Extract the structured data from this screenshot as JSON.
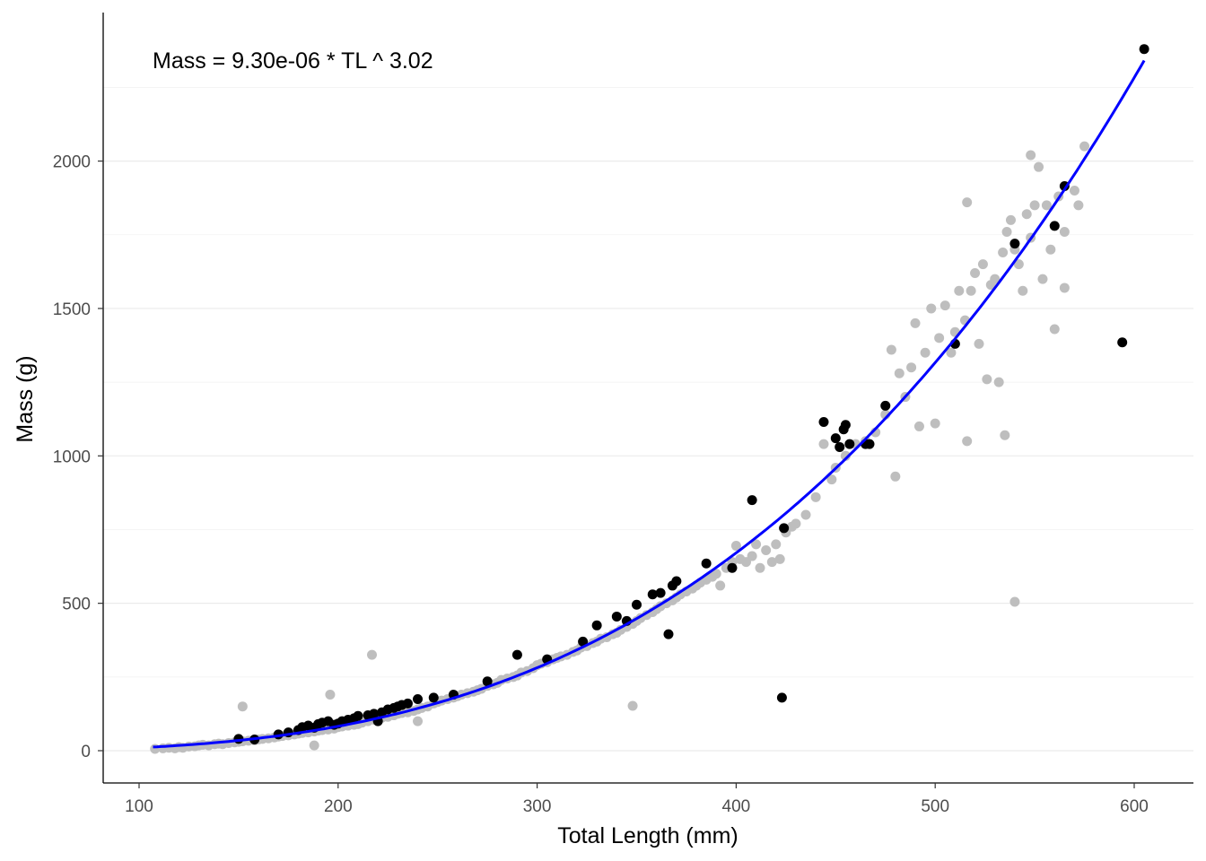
{
  "chart_data": {
    "type": "scatter",
    "title": "",
    "annotation": "Mass = 9.30e-06 * TL ^ 3.02",
    "xlabel": "Total Length (mm)",
    "ylabel": "Mass (g)",
    "xlim": [
      90,
      630
    ],
    "ylim": [
      -110,
      2500
    ],
    "x_ticks": [
      100,
      200,
      300,
      400,
      500,
      600
    ],
    "y_ticks": [
      0,
      500,
      1000,
      1500,
      2000
    ],
    "grid": true,
    "legend": "none",
    "colors": {
      "grey_points": "#bebebe",
      "black_points": "#000000",
      "fit_line": "#0000ff"
    },
    "fit": {
      "a": 9.3e-06,
      "b": 3.02,
      "x_range": [
        107,
        605
      ]
    },
    "series": [
      {
        "color": "#bebebe",
        "points": [
          [
            108,
            6
          ],
          [
            112,
            8
          ],
          [
            115,
            10
          ],
          [
            118,
            8
          ],
          [
            120,
            12
          ],
          [
            122,
            10
          ],
          [
            125,
            14
          ],
          [
            128,
            15
          ],
          [
            130,
            18
          ],
          [
            132,
            20
          ],
          [
            135,
            18
          ],
          [
            138,
            22
          ],
          [
            140,
            24
          ],
          [
            142,
            22
          ],
          [
            145,
            26
          ],
          [
            148,
            28
          ],
          [
            150,
            30
          ],
          [
            152,
            32
          ],
          [
            152,
            150
          ],
          [
            155,
            34
          ],
          [
            158,
            35
          ],
          [
            160,
            38
          ],
          [
            162,
            40
          ],
          [
            165,
            42
          ],
          [
            168,
            45
          ],
          [
            170,
            48
          ],
          [
            172,
            50
          ],
          [
            175,
            52
          ],
          [
            178,
            55
          ],
          [
            180,
            58
          ],
          [
            182,
            60
          ],
          [
            185,
            62
          ],
          [
            188,
            65
          ],
          [
            188,
            18
          ],
          [
            190,
            68
          ],
          [
            192,
            70
          ],
          [
            195,
            72
          ],
          [
            196,
            190
          ],
          [
            198,
            75
          ],
          [
            200,
            80
          ],
          [
            202,
            82
          ],
          [
            205,
            85
          ],
          [
            208,
            88
          ],
          [
            210,
            90
          ],
          [
            212,
            95
          ],
          [
            215,
            100
          ],
          [
            217,
            325
          ],
          [
            218,
            105
          ],
          [
            220,
            110
          ],
          [
            222,
            112
          ],
          [
            225,
            115
          ],
          [
            228,
            120
          ],
          [
            230,
            125
          ],
          [
            232,
            128
          ],
          [
            235,
            130
          ],
          [
            238,
            135
          ],
          [
            240,
            100
          ],
          [
            240,
            140
          ],
          [
            242,
            145
          ],
          [
            245,
            150
          ],
          [
            248,
            160
          ],
          [
            250,
            165
          ],
          [
            252,
            170
          ],
          [
            255,
            175
          ],
          [
            258,
            180
          ],
          [
            260,
            185
          ],
          [
            262,
            190
          ],
          [
            265,
            195
          ],
          [
            268,
            200
          ],
          [
            270,
            205
          ],
          [
            272,
            210
          ],
          [
            275,
            220
          ],
          [
            278,
            225
          ],
          [
            280,
            230
          ],
          [
            282,
            240
          ],
          [
            285,
            245
          ],
          [
            288,
            250
          ],
          [
            290,
            255
          ],
          [
            292,
            265
          ],
          [
            295,
            270
          ],
          [
            298,
            280
          ],
          [
            300,
            290
          ],
          [
            302,
            295
          ],
          [
            305,
            300
          ],
          [
            308,
            310
          ],
          [
            310,
            315
          ],
          [
            312,
            320
          ],
          [
            315,
            325
          ],
          [
            318,
            335
          ],
          [
            320,
            340
          ],
          [
            322,
            350
          ],
          [
            325,
            355
          ],
          [
            328,
            365
          ],
          [
            330,
            370
          ],
          [
            332,
            380
          ],
          [
            335,
            385
          ],
          [
            338,
            395
          ],
          [
            340,
            400
          ],
          [
            342,
            410
          ],
          [
            345,
            420
          ],
          [
            348,
            430
          ],
          [
            348,
            152
          ],
          [
            350,
            440
          ],
          [
            352,
            450
          ],
          [
            355,
            460
          ],
          [
            358,
            470
          ],
          [
            360,
            480
          ],
          [
            362,
            490
          ],
          [
            365,
            500
          ],
          [
            368,
            510
          ],
          [
            370,
            520
          ],
          [
            372,
            530
          ],
          [
            375,
            540
          ],
          [
            378,
            550
          ],
          [
            380,
            560
          ],
          [
            382,
            570
          ],
          [
            385,
            580
          ],
          [
            388,
            590
          ],
          [
            390,
            600
          ],
          [
            392,
            560
          ],
          [
            395,
            620
          ],
          [
            398,
            640
          ],
          [
            400,
            695
          ],
          [
            402,
            650
          ],
          [
            405,
            640
          ],
          [
            408,
            660
          ],
          [
            410,
            700
          ],
          [
            412,
            620
          ],
          [
            415,
            680
          ],
          [
            418,
            640
          ],
          [
            420,
            700
          ],
          [
            422,
            650
          ],
          [
            425,
            740
          ],
          [
            428,
            760
          ],
          [
            430,
            770
          ],
          [
            435,
            800
          ],
          [
            440,
            860
          ],
          [
            444,
            1040
          ],
          [
            448,
            920
          ],
          [
            450,
            960
          ],
          [
            455,
            1000
          ],
          [
            460,
            1040
          ],
          [
            465,
            1050
          ],
          [
            470,
            1080
          ],
          [
            475,
            1140
          ],
          [
            478,
            1360
          ],
          [
            480,
            930
          ],
          [
            482,
            1280
          ],
          [
            485,
            1200
          ],
          [
            488,
            1300
          ],
          [
            490,
            1450
          ],
          [
            492,
            1100
          ],
          [
            495,
            1350
          ],
          [
            498,
            1500
          ],
          [
            500,
            1110
          ],
          [
            502,
            1400
          ],
          [
            505,
            1510
          ],
          [
            508,
            1350
          ],
          [
            510,
            1420
          ],
          [
            512,
            1560
          ],
          [
            515,
            1460
          ],
          [
            516,
            1050
          ],
          [
            516,
            1860
          ],
          [
            518,
            1560
          ],
          [
            520,
            1620
          ],
          [
            522,
            1380
          ],
          [
            524,
            1650
          ],
          [
            526,
            1260
          ],
          [
            528,
            1580
          ],
          [
            530,
            1600
          ],
          [
            532,
            1250
          ],
          [
            534,
            1690
          ],
          [
            535,
            1070
          ],
          [
            536,
            1760
          ],
          [
            538,
            1800
          ],
          [
            540,
            1700
          ],
          [
            540,
            505
          ],
          [
            542,
            1650
          ],
          [
            544,
            1560
          ],
          [
            546,
            1820
          ],
          [
            548,
            1740
          ],
          [
            548,
            2020
          ],
          [
            550,
            1850
          ],
          [
            552,
            1980
          ],
          [
            554,
            1600
          ],
          [
            556,
            1850
          ],
          [
            558,
            1700
          ],
          [
            560,
            1430
          ],
          [
            562,
            1880
          ],
          [
            565,
            1760
          ],
          [
            565,
            1570
          ],
          [
            570,
            1900
          ],
          [
            572,
            1850
          ],
          [
            575,
            2050
          ]
        ]
      },
      {
        "color": "#000000",
        "points": [
          [
            150,
            40
          ],
          [
            158,
            38
          ],
          [
            170,
            55
          ],
          [
            175,
            62
          ],
          [
            180,
            70
          ],
          [
            182,
            80
          ],
          [
            185,
            85
          ],
          [
            188,
            78
          ],
          [
            190,
            90
          ],
          [
            192,
            95
          ],
          [
            195,
            100
          ],
          [
            198,
            88
          ],
          [
            200,
            92
          ],
          [
            202,
            100
          ],
          [
            205,
            105
          ],
          [
            208,
            110
          ],
          [
            210,
            118
          ],
          [
            215,
            120
          ],
          [
            218,
            125
          ],
          [
            220,
            100
          ],
          [
            222,
            130
          ],
          [
            225,
            140
          ],
          [
            228,
            145
          ],
          [
            230,
            150
          ],
          [
            232,
            155
          ],
          [
            235,
            160
          ],
          [
            240,
            175
          ],
          [
            248,
            180
          ],
          [
            258,
            190
          ],
          [
            275,
            235
          ],
          [
            290,
            325
          ],
          [
            305,
            310
          ],
          [
            323,
            370
          ],
          [
            330,
            425
          ],
          [
            340,
            455
          ],
          [
            345,
            440
          ],
          [
            350,
            495
          ],
          [
            358,
            530
          ],
          [
            362,
            535
          ],
          [
            366,
            395
          ],
          [
            368,
            560
          ],
          [
            370,
            575
          ],
          [
            385,
            635
          ],
          [
            398,
            620
          ],
          [
            408,
            850
          ],
          [
            423,
            180
          ],
          [
            424,
            755
          ],
          [
            444,
            1115
          ],
          [
            450,
            1060
          ],
          [
            452,
            1030
          ],
          [
            454,
            1090
          ],
          [
            455,
            1105
          ],
          [
            457,
            1040
          ],
          [
            465,
            1040
          ],
          [
            467,
            1040
          ],
          [
            475,
            1170
          ],
          [
            510,
            1380
          ],
          [
            540,
            1720
          ],
          [
            560,
            1780
          ],
          [
            565,
            1915
          ],
          [
            594,
            1385
          ],
          [
            605,
            2380
          ]
        ]
      }
    ]
  }
}
